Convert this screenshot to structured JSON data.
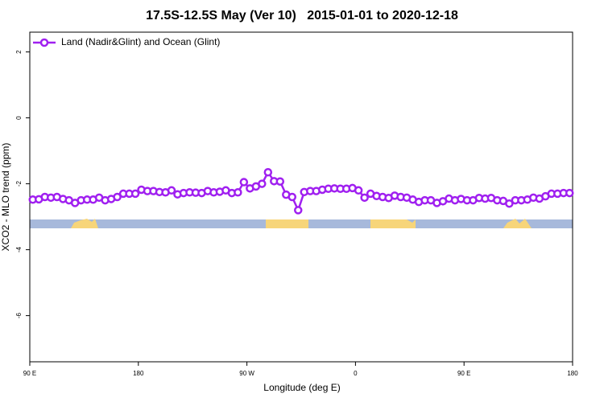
{
  "chart_data": {
    "type": "line",
    "title": "17.5S-12.5S May (Ver 10)   2015-01-01 to 2020-12-18",
    "xlabel": "Longitude (deg E)",
    "ylabel": "XCO2 - MLO trend (ppm)",
    "xlim": [
      90,
      540
    ],
    "xticks": [
      {
        "value": 90,
        "label": "90 E"
      },
      {
        "value": 180,
        "label": "180"
      },
      {
        "value": 270,
        "label": "90 W"
      },
      {
        "value": 360,
        "label": "0"
      },
      {
        "value": 450,
        "label": "90 E"
      },
      {
        "value": 540,
        "label": "180"
      }
    ],
    "ylim": [
      -7.4,
      2.6
    ],
    "yticks": [
      -6,
      -4,
      -2,
      0,
      2
    ],
    "legend": "top-left",
    "x": [
      92.5,
      97.5,
      102.5,
      107.5,
      112.5,
      117.5,
      122.5,
      127.5,
      132.5,
      137.5,
      142.5,
      147.5,
      152.5,
      157.5,
      162.5,
      167.5,
      172.5,
      177.5,
      182.5,
      187.5,
      192.5,
      197.5,
      202.5,
      207.5,
      212.5,
      217.5,
      222.5,
      227.5,
      232.5,
      237.5,
      242.5,
      247.5,
      252.5,
      257.5,
      262.5,
      267.5,
      272.5,
      277.5,
      282.5,
      287.5,
      292.5,
      297.5,
      302.5,
      307.5,
      312.5,
      317.5,
      322.5,
      327.5,
      332.5,
      337.5,
      342.5,
      347.5,
      352.5,
      357.5,
      362.5,
      367.5,
      372.5,
      377.5,
      382.5,
      387.5,
      392.5,
      397.5,
      402.5,
      407.5,
      412.5,
      417.5,
      422.5,
      427.5,
      432.5,
      437.5,
      442.5,
      447.5,
      452.5,
      457.5,
      462.5,
      467.5,
      472.5,
      477.5,
      482.5,
      487.5,
      492.5,
      497.5,
      502.5,
      507.5,
      512.5,
      517.5,
      522.5,
      527.5,
      532.5,
      537.5
    ],
    "series": [
      {
        "name": "Land (Nadir&Glint) and Ocean (Glint)",
        "color": "#a020f0",
        "values": [
          -2.48,
          -2.47,
          -2.4,
          -2.42,
          -2.4,
          -2.46,
          -2.5,
          -2.58,
          -2.5,
          -2.48,
          -2.48,
          -2.42,
          -2.5,
          -2.46,
          -2.4,
          -2.3,
          -2.3,
          -2.3,
          -2.18,
          -2.22,
          -2.22,
          -2.25,
          -2.26,
          -2.2,
          -2.32,
          -2.28,
          -2.26,
          -2.27,
          -2.28,
          -2.22,
          -2.26,
          -2.24,
          -2.2,
          -2.28,
          -2.26,
          -1.95,
          -2.14,
          -2.08,
          -2.0,
          -1.65,
          -1.92,
          -1.93,
          -2.33,
          -2.4,
          -2.8,
          -2.25,
          -2.22,
          -2.22,
          -2.18,
          -2.15,
          -2.14,
          -2.15,
          -2.15,
          -2.13,
          -2.2,
          -2.42,
          -2.3,
          -2.37,
          -2.4,
          -2.43,
          -2.36,
          -2.4,
          -2.42,
          -2.48,
          -2.55,
          -2.5,
          -2.5,
          -2.58,
          -2.53,
          -2.45,
          -2.5,
          -2.46,
          -2.5,
          -2.5,
          -2.43,
          -2.45,
          -2.43,
          -2.5,
          -2.52,
          -2.6,
          -2.5,
          -2.5,
          -2.48,
          -2.42,
          -2.45,
          -2.38,
          -2.3,
          -2.3,
          -2.28,
          -2.28
        ]
      }
    ]
  }
}
